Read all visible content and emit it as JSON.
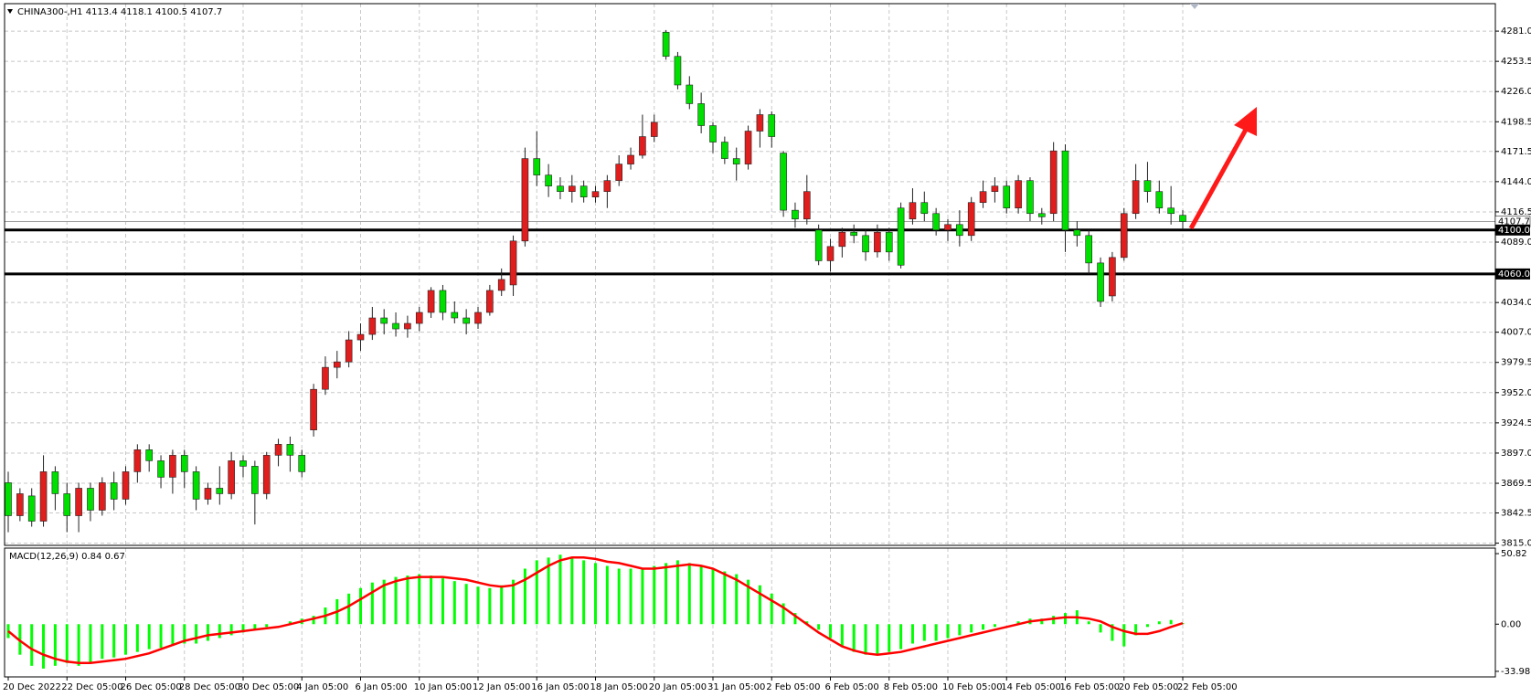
{
  "chart_data": [
    {
      "type": "candlestick",
      "title": "CHINA300-,H1  4113.4 4118.1 4100.5 4107.7",
      "categories": [
        "20 Dec 2022",
        null,
        null,
        null,
        null,
        "22 Dec 05:00",
        null,
        null,
        null,
        null,
        "26 Dec 05:00",
        null,
        null,
        null,
        null,
        "28 Dec 05:00",
        null,
        null,
        null,
        null,
        "30 Dec 05:00",
        null,
        null,
        null,
        null,
        "4 Jan 05:00",
        null,
        null,
        null,
        null,
        "6 Jan 05:00",
        null,
        null,
        null,
        null,
        "10 Jan 05:00",
        null,
        null,
        null,
        null,
        "12 Jan 05:00",
        null,
        null,
        null,
        null,
        "16 Jan 05:00",
        null,
        null,
        null,
        null,
        "18 Jan 05:00",
        null,
        null,
        null,
        null,
        "20 Jan 05:00",
        null,
        null,
        null,
        null,
        "31 Jan 05:00",
        null,
        null,
        null,
        null,
        "2 Feb 05:00",
        null,
        null,
        null,
        null,
        "6 Feb 05:00",
        null,
        null,
        null,
        null,
        "8 Feb 05:00",
        null,
        null,
        null,
        null,
        "10 Feb 05:00",
        null,
        null,
        null,
        null,
        "14 Feb 05:00",
        null,
        null,
        null,
        null,
        "16 Feb 05:00",
        null,
        null,
        null,
        null,
        "20 Feb 05:00",
        null,
        null,
        null,
        null,
        "22 Feb 05:00"
      ],
      "open": [
        3870,
        3840,
        3858,
        3835,
        3880,
        3860,
        3840,
        3865,
        3845,
        3870,
        3855,
        3880,
        3900,
        3890,
        3875,
        3895,
        3880,
        3855,
        3865,
        3860,
        3890,
        3885,
        3860,
        3895,
        3905,
        3895,
        3918,
        3955,
        3975,
        3980,
        4000,
        4005,
        4020,
        4015,
        4010,
        4015,
        4025,
        4045,
        4025,
        4020,
        4015,
        4025,
        4045,
        4050,
        4090,
        4165,
        4150,
        4140,
        4135,
        4140,
        4130,
        4135,
        4145,
        4160,
        4168,
        4185,
        4280,
        4258,
        4232,
        4215,
        4195,
        4180,
        4165,
        4160,
        4190,
        4205,
        4170,
        4118,
        4110,
        4100,
        4072,
        4085,
        4098,
        4095,
        4080,
        4098,
        4120,
        4110,
        4125,
        4115,
        4100,
        4105,
        4095,
        4125,
        4135,
        4140,
        4120,
        4145,
        4115,
        4115,
        4172,
        4100,
        4095,
        4070,
        4040,
        4075,
        4115,
        4145,
        4135,
        4120,
        4113.4
      ],
      "high": [
        3880,
        3865,
        3865,
        3895,
        3885,
        3870,
        3870,
        3870,
        3875,
        3880,
        3885,
        3905,
        3905,
        3895,
        3900,
        3900,
        3885,
        3870,
        3885,
        3898,
        3895,
        3890,
        3898,
        3910,
        3912,
        3900,
        3960,
        3985,
        3990,
        4008,
        4015,
        4030,
        4028,
        4025,
        4022,
        4030,
        4048,
        4050,
        4035,
        4028,
        4030,
        4050,
        4065,
        4095,
        4175,
        4190,
        4160,
        4148,
        4150,
        4145,
        4140,
        4150,
        4168,
        4175,
        4205,
        4205,
        4282,
        4262,
        4240,
        4225,
        4198,
        4185,
        4175,
        4195,
        4210,
        4208,
        4172,
        4125,
        4150,
        4105,
        4092,
        4102,
        4105,
        4100,
        4105,
        4102,
        4125,
        4138,
        4135,
        4120,
        4110,
        4118,
        4130,
        4145,
        4148,
        4145,
        4150,
        4148,
        4120,
        4180,
        4178,
        4108,
        4100,
        4075,
        4080,
        4120,
        4160,
        4162,
        4145,
        4140,
        4118.1
      ],
      "low": [
        3825,
        3835,
        3830,
        3830,
        3845,
        3825,
        3825,
        3835,
        3840,
        3845,
        3850,
        3870,
        3880,
        3865,
        3860,
        3865,
        3845,
        3850,
        3850,
        3855,
        3875,
        3832,
        3855,
        3885,
        3880,
        3875,
        3912,
        3950,
        3965,
        3975,
        3990,
        4000,
        4005,
        4003,
        4002,
        4008,
        4020,
        4018,
        4015,
        4005,
        4010,
        4022,
        4040,
        4040,
        4085,
        4140,
        4130,
        4128,
        4125,
        4125,
        4125,
        4120,
        4140,
        4155,
        4165,
        4180,
        4255,
        4228,
        4210,
        4188,
        4170,
        4160,
        4145,
        4155,
        4175,
        4175,
        4112,
        4102,
        4105,
        4068,
        4062,
        4075,
        4088,
        4072,
        4075,
        4072,
        4065,
        4105,
        4108,
        4095,
        4090,
        4085,
        4090,
        4120,
        4125,
        4115,
        4115,
        4108,
        4105,
        4108,
        4080,
        4085,
        4060,
        4030,
        4035,
        4072,
        4110,
        4125,
        4115,
        4105,
        4100.5
      ],
      "close": [
        3840,
        3860,
        3835,
        3880,
        3860,
        3840,
        3865,
        3845,
        3870,
        3855,
        3880,
        3900,
        3890,
        3875,
        3895,
        3880,
        3855,
        3865,
        3860,
        3890,
        3885,
        3860,
        3895,
        3905,
        3895,
        3880,
        3955,
        3975,
        3980,
        4000,
        4005,
        4020,
        4015,
        4010,
        4015,
        4025,
        4045,
        4025,
        4020,
        4015,
        4025,
        4045,
        4055,
        4090,
        4165,
        4150,
        4140,
        4135,
        4140,
        4130,
        4135,
        4145,
        4160,
        4168,
        4185,
        4198,
        4258,
        4232,
        4215,
        4195,
        4180,
        4165,
        4160,
        4190,
        4205,
        4185,
        4118,
        4110,
        4135,
        4072,
        4085,
        4098,
        4095,
        4080,
        4098,
        4080,
        4068,
        4125,
        4115,
        4100,
        4105,
        4095,
        4125,
        4135,
        4140,
        4120,
        4145,
        4115,
        4112,
        4172,
        4100,
        4095,
        4070,
        4035,
        4075,
        4115,
        4145,
        4135,
        4120,
        4115,
        4107.7
      ],
      "up_color": "#e01e1e",
      "down_color": "#00e000",
      "ylim": [
        3813,
        4306
      ],
      "yticks": [
        {
          "value": 4281,
          "label": "4281.0"
        },
        4253.5,
        {
          "value": 4226,
          "label": "4226.0"
        },
        4198.5,
        4171.5,
        {
          "value": 4144,
          "label": "4144.0"
        },
        4116.5,
        {
          "value": 4089,
          "label": "4089.0"
        },
        {
          "value": 4034,
          "label": "4034.0"
        },
        {
          "value": 4007,
          "label": "4007.0"
        },
        3979.5,
        {
          "value": 3952,
          "label": "3952.0"
        },
        3924.5,
        {
          "value": 3897,
          "label": "3897.0"
        },
        3869.5,
        3842.5,
        {
          "value": 3815,
          "label": "3815.0"
        }
      ],
      "grid": true,
      "last_price": {
        "value": 4107.7,
        "label": "4107.7"
      },
      "hlines": [
        {
          "value": 4100,
          "label": "4100.0"
        },
        {
          "value": 4060,
          "label": "4060.0"
        }
      ]
    },
    {
      "type": "macd",
      "title": "MACD(12,26,9) 0.84 0.67",
      "histogram": [
        -10,
        -22,
        -30,
        -32,
        -30,
        -28,
        -30,
        -28,
        -25,
        -24,
        -22,
        -20,
        -18,
        -17,
        -15,
        -14,
        -14,
        -12,
        -10,
        -8,
        -6,
        -4,
        -2,
        0,
        2,
        4,
        6,
        12,
        18,
        22,
        26,
        30,
        32,
        34,
        35,
        36,
        35,
        33,
        31,
        29,
        27,
        26,
        28,
        32,
        40,
        46,
        48,
        50,
        48,
        46,
        44,
        42,
        40,
        40,
        40,
        42,
        44,
        46,
        44,
        42,
        40,
        38,
        36,
        32,
        28,
        22,
        15,
        8,
        2,
        -4,
        -10,
        -16,
        -20,
        -22,
        -22,
        -20,
        -18,
        -14,
        -12,
        -12,
        -10,
        -8,
        -6,
        -4,
        -2,
        0,
        2,
        4,
        4,
        6,
        8,
        10,
        2,
        -6,
        -12,
        -16,
        -8,
        -2,
        2,
        3,
        0.84
      ],
      "signal": [
        -5,
        -12,
        -18,
        -22,
        -25,
        -27,
        -28,
        -28,
        -27,
        -26,
        -25,
        -23,
        -21,
        -18,
        -15,
        -12,
        -10,
        -8,
        -7,
        -6,
        -5,
        -4,
        -3,
        -2,
        0,
        2,
        4,
        6,
        9,
        13,
        18,
        23,
        28,
        31,
        33,
        34,
        34,
        34,
        33,
        32,
        30,
        28,
        27,
        28,
        32,
        37,
        42,
        46,
        48,
        48,
        47,
        45,
        44,
        42,
        40,
        40,
        41,
        42,
        43,
        42,
        40,
        36,
        32,
        27,
        22,
        17,
        12,
        6,
        0,
        -6,
        -11,
        -16,
        -19,
        -21,
        -22,
        -21,
        -20,
        -18,
        -16,
        -14,
        -12,
        -10,
        -8,
        -6,
        -4,
        -2,
        0,
        2,
        3,
        4,
        5,
        5,
        4,
        2,
        -2,
        -5,
        -7,
        -7,
        -5,
        -2,
        0.67
      ],
      "histogram_color": "#00ff00",
      "signal_color": "#ff0000",
      "ylim": [
        -38,
        54.8
      ],
      "yticks": [
        50.82,
        {
          "value": 0,
          "label": "0.00"
        },
        -33.98
      ]
    }
  ]
}
